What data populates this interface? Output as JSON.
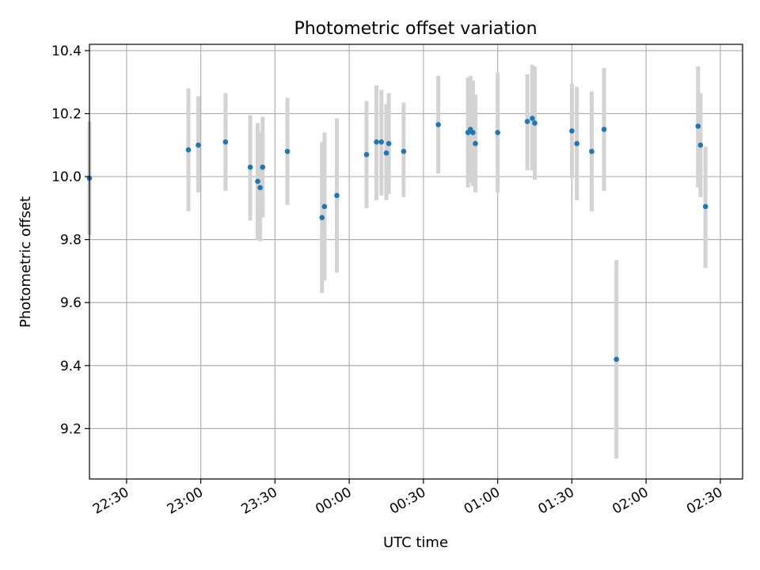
{
  "chart_data": {
    "type": "scatter",
    "title": "Photometric offset variation",
    "xlabel": "UTC time",
    "ylabel": "Photometric offset",
    "x_ticks": [
      "22:30",
      "23:00",
      "23:30",
      "00:00",
      "00:30",
      "01:00",
      "01:30",
      "02:00",
      "02:30"
    ],
    "y_ticks": [
      "9.2",
      "9.4",
      "9.6",
      "9.8",
      "10.0",
      "10.2",
      "10.4"
    ],
    "xlim": [
      "22:15",
      "02:39"
    ],
    "ylim": [
      9.04,
      10.42
    ],
    "grid": true,
    "marker_color": "#1f77b4",
    "errorbar_color": "#d3d3d3",
    "points": [
      {
        "x": "22:15",
        "y": 9.995,
        "lo": 9.815,
        "hi": 10.175
      },
      {
        "x": "22:55",
        "y": 10.085,
        "lo": 9.89,
        "hi": 10.28
      },
      {
        "x": "22:59",
        "y": 10.1,
        "lo": 9.95,
        "hi": 10.255
      },
      {
        "x": "23:10",
        "y": 10.11,
        "lo": 9.955,
        "hi": 10.265
      },
      {
        "x": "23:20",
        "y": 10.03,
        "lo": 9.86,
        "hi": 10.195
      },
      {
        "x": "23:23",
        "y": 9.985,
        "lo": 9.8,
        "hi": 10.17
      },
      {
        "x": "23:24",
        "y": 9.965,
        "lo": 9.795,
        "hi": 10.14
      },
      {
        "x": "23:25",
        "y": 10.03,
        "lo": 9.87,
        "hi": 10.19
      },
      {
        "x": "23:35",
        "y": 10.08,
        "lo": 9.91,
        "hi": 10.25
      },
      {
        "x": "23:49",
        "y": 9.87,
        "lo": 9.63,
        "hi": 10.11
      },
      {
        "x": "23:50",
        "y": 9.905,
        "lo": 9.67,
        "hi": 10.14
      },
      {
        "x": "23:55",
        "y": 9.94,
        "lo": 9.695,
        "hi": 10.185
      },
      {
        "x": "00:07",
        "y": 10.07,
        "lo": 9.9,
        "hi": 10.24
      },
      {
        "x": "00:11",
        "y": 10.11,
        "lo": 9.925,
        "hi": 10.29
      },
      {
        "x": "00:13",
        "y": 10.11,
        "lo": 9.94,
        "hi": 10.275
      },
      {
        "x": "00:15",
        "y": 10.075,
        "lo": 9.925,
        "hi": 10.23
      },
      {
        "x": "00:16",
        "y": 10.105,
        "lo": 9.945,
        "hi": 10.265
      },
      {
        "x": "00:22",
        "y": 10.08,
        "lo": 9.935,
        "hi": 10.235
      },
      {
        "x": "00:36",
        "y": 10.165,
        "lo": 10.01,
        "hi": 10.32
      },
      {
        "x": "00:48",
        "y": 10.14,
        "lo": 9.965,
        "hi": 10.315
      },
      {
        "x": "00:49",
        "y": 10.15,
        "lo": 9.98,
        "hi": 10.32
      },
      {
        "x": "00:50",
        "y": 10.14,
        "lo": 9.97,
        "hi": 10.305
      },
      {
        "x": "00:51",
        "y": 10.105,
        "lo": 9.95,
        "hi": 10.26
      },
      {
        "x": "01:00",
        "y": 10.14,
        "lo": 9.95,
        "hi": 10.33
      },
      {
        "x": "01:12",
        "y": 10.175,
        "lo": 10.02,
        "hi": 10.325
      },
      {
        "x": "01:14",
        "y": 10.185,
        "lo": 10.02,
        "hi": 10.355
      },
      {
        "x": "01:15",
        "y": 10.17,
        "lo": 9.99,
        "hi": 10.35
      },
      {
        "x": "01:30",
        "y": 10.145,
        "lo": 9.995,
        "hi": 10.295
      },
      {
        "x": "01:32",
        "y": 10.105,
        "lo": 9.925,
        "hi": 10.285
      },
      {
        "x": "01:38",
        "y": 10.08,
        "lo": 9.89,
        "hi": 10.27
      },
      {
        "x": "01:43",
        "y": 10.15,
        "lo": 9.955,
        "hi": 10.345
      },
      {
        "x": "01:48",
        "y": 9.42,
        "lo": 9.105,
        "hi": 9.735
      },
      {
        "x": "02:21",
        "y": 10.16,
        "lo": 9.965,
        "hi": 10.35
      },
      {
        "x": "02:22",
        "y": 10.1,
        "lo": 9.935,
        "hi": 10.265
      },
      {
        "x": "02:24",
        "y": 9.905,
        "lo": 9.71,
        "hi": 10.095
      }
    ]
  }
}
